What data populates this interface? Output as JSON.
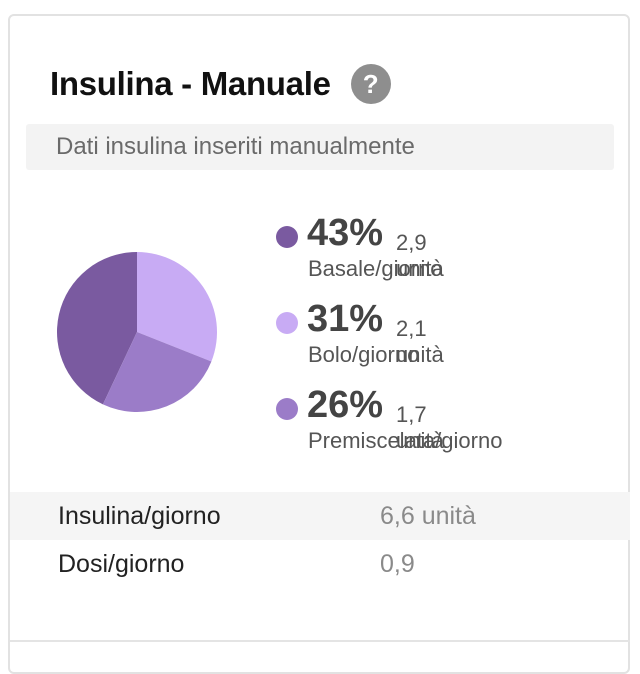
{
  "card": {
    "title": "Insulina - Manuale",
    "help_icon_glyph": "?",
    "subtitle": "Dati insulina inseriti manualmente"
  },
  "distribution": [
    {
      "percent": "43%",
      "units": "2,9 unità",
      "label": "Basale/giorno",
      "color": "#7a5aa0"
    },
    {
      "percent": "31%",
      "units": "2,1 unità",
      "label": "Bolo/giorno",
      "color": "#c8abf4"
    },
    {
      "percent": "26%",
      "units": "1,7 unità",
      "label": "Premiscelata/giorno",
      "color": "#9b7cc8"
    }
  ],
  "stats": [
    {
      "label": "Insulina/giorno",
      "value": "6,6 unità"
    },
    {
      "label": "Dosi/giorno",
      "value": "0,9"
    }
  ]
}
